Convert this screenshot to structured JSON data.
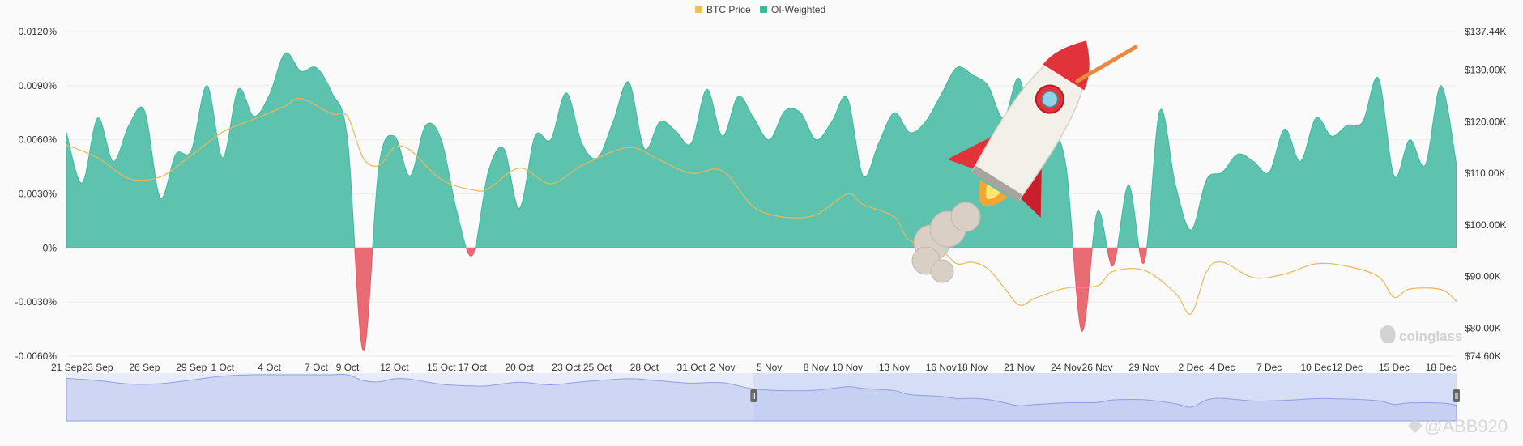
{
  "chart_data": {
    "type": "area",
    "legend": [
      {
        "name": "BTC Price",
        "color": "#e9c25a"
      },
      {
        "name": "OI-Weighted",
        "color": "#3cba9a"
      }
    ],
    "legend_position": "top-center",
    "x_dates": [
      "2025-09-21",
      "2025-09-23",
      "2025-09-26",
      "2025-09-29",
      "2025-10-01",
      "2025-10-04",
      "2025-10-07",
      "2025-10-09",
      "2025-10-12",
      "2025-10-15",
      "2025-10-17",
      "2025-10-20",
      "2025-10-23",
      "2025-10-25",
      "2025-10-28",
      "2025-10-31",
      "2025-11-02",
      "2025-11-05",
      "2025-11-08",
      "2025-11-10",
      "2025-11-13",
      "2025-11-16",
      "2025-11-18",
      "2025-11-21",
      "2025-11-24",
      "2025-11-26",
      "2025-11-29",
      "2025-12-02",
      "2025-12-04",
      "2025-12-07",
      "2025-12-10",
      "2025-12-12",
      "2025-12-15",
      "2025-12-18"
    ],
    "x_tick_labels": [
      "21 Sep",
      "23 Sep",
      "26 Sep",
      "29 Sep",
      "1 Oct",
      "4 Oct",
      "7 Oct",
      "9 Oct",
      "12 Oct",
      "15 Oct",
      "17 Oct",
      "20 Oct",
      "23 Oct",
      "25 Oct",
      "28 Oct",
      "31 Oct",
      "2 Nov",
      "5 Nov",
      "8 Nov",
      "10 Nov",
      "13 Nov",
      "16 Nov",
      "18 Nov",
      "21 Nov",
      "24 Nov",
      "26 Nov",
      "29 Nov",
      "2 Dec",
      "4 Dec",
      "7 Dec",
      "10 Dec",
      "12 Dec",
      "15 Dec",
      "18 Dec"
    ],
    "y_left": {
      "unit": "%",
      "range": [
        -0.006,
        0.012
      ],
      "ticks": [
        -0.006,
        -0.003,
        0,
        0.003,
        0.006,
        0.009,
        0.012
      ],
      "tick_labels": [
        "-0.0060%",
        "-0.0030%",
        "0%",
        "0.0030%",
        "0.0060%",
        "0.0090%",
        "0.0120%"
      ]
    },
    "y_right": {
      "unit": "USD",
      "range": [
        74600,
        137440
      ],
      "ticks": [
        74600,
        80000,
        90000,
        100000,
        110000,
        120000,
        130000,
        137440
      ],
      "tick_labels": [
        "$74.60K",
        "$80.00K",
        "$90.00K",
        "$100.00K",
        "$110.00K",
        "$120.00K",
        "$130.00K",
        "$137.44K"
      ]
    },
    "grid": true,
    "series": [
      {
        "name": "OI-Weighted",
        "axis": "left",
        "color": "#3cba9a",
        "negative_color": "#e35a63",
        "x": [
          "2025-09-21",
          "2025-09-22",
          "2025-09-23",
          "2025-09-24",
          "2025-09-25",
          "2025-09-26",
          "2025-09-27",
          "2025-09-28",
          "2025-09-29",
          "2025-09-30",
          "2025-10-01",
          "2025-10-02",
          "2025-10-03",
          "2025-10-04",
          "2025-10-05",
          "2025-10-06",
          "2025-10-07",
          "2025-10-08",
          "2025-10-09",
          "2025-10-10",
          "2025-10-11",
          "2025-10-12",
          "2025-10-13",
          "2025-10-14",
          "2025-10-15",
          "2025-10-16",
          "2025-10-17",
          "2025-10-18",
          "2025-10-19",
          "2025-10-20",
          "2025-10-21",
          "2025-10-22",
          "2025-10-23",
          "2025-10-24",
          "2025-10-25",
          "2025-10-26",
          "2025-10-27",
          "2025-10-28",
          "2025-10-29",
          "2025-10-30",
          "2025-10-31",
          "2025-11-01",
          "2025-11-02",
          "2025-11-03",
          "2025-11-04",
          "2025-11-05",
          "2025-11-06",
          "2025-11-07",
          "2025-11-08",
          "2025-11-09",
          "2025-11-10",
          "2025-11-11",
          "2025-11-12",
          "2025-11-13",
          "2025-11-14",
          "2025-11-15",
          "2025-11-16",
          "2025-11-17",
          "2025-11-18",
          "2025-11-19",
          "2025-11-20",
          "2025-11-21",
          "2025-11-22",
          "2025-11-23",
          "2025-11-24",
          "2025-11-25",
          "2025-11-26",
          "2025-11-27",
          "2025-11-28",
          "2025-11-29",
          "2025-11-30",
          "2025-12-01",
          "2025-12-02",
          "2025-12-03",
          "2025-12-04",
          "2025-12-05",
          "2025-12-06",
          "2025-12-07",
          "2025-12-08",
          "2025-12-09",
          "2025-12-10",
          "2025-12-11",
          "2025-12-12",
          "2025-12-13",
          "2025-12-14",
          "2025-12-15",
          "2025-12-16",
          "2025-12-17",
          "2025-12-18",
          "2025-12-19"
        ],
        "values": [
          0.0064,
          0.0036,
          0.0072,
          0.0048,
          0.0068,
          0.0076,
          0.0028,
          0.0052,
          0.0054,
          0.009,
          0.005,
          0.0088,
          0.0073,
          0.0085,
          0.0108,
          0.0098,
          0.01,
          0.0086,
          0.006,
          -0.0057,
          0.0045,
          0.0062,
          0.004,
          0.0068,
          0.006,
          0.002,
          -0.0004,
          0.0042,
          0.0055,
          0.0022,
          0.0062,
          0.006,
          0.0086,
          0.0058,
          0.005,
          0.007,
          0.0092,
          0.0055,
          0.007,
          0.0065,
          0.0058,
          0.0088,
          0.0062,
          0.0084,
          0.0072,
          0.006,
          0.0076,
          0.0075,
          0.006,
          0.007,
          0.0083,
          0.004,
          0.0058,
          0.0075,
          0.0064,
          0.007,
          0.0085,
          0.01,
          0.0096,
          0.009,
          0.0072,
          0.0094,
          0.0055,
          0.0065,
          0.0045,
          -0.0046,
          0.002,
          -0.001,
          0.0035,
          -0.0008,
          0.0076,
          0.0035,
          0.001,
          0.0038,
          0.0042,
          0.0052,
          0.0048,
          0.0042,
          0.0066,
          0.0048,
          0.0072,
          0.0062,
          0.0068,
          0.007,
          0.0094,
          0.004,
          0.006,
          0.0046,
          0.009,
          0.0046
        ]
      },
      {
        "name": "BTC Price",
        "axis": "right",
        "color": "#e9c25a",
        "x": [
          "2025-09-21",
          "2025-09-23",
          "2025-09-25",
          "2025-09-27",
          "2025-09-29",
          "2025-10-01",
          "2025-10-03",
          "2025-10-05",
          "2025-10-06",
          "2025-10-08",
          "2025-10-09",
          "2025-10-10",
          "2025-10-11",
          "2025-10-12",
          "2025-10-13",
          "2025-10-15",
          "2025-10-17",
          "2025-10-18",
          "2025-10-20",
          "2025-10-22",
          "2025-10-24",
          "2025-10-27",
          "2025-10-29",
          "2025-10-31",
          "2025-11-02",
          "2025-11-04",
          "2025-11-06",
          "2025-11-08",
          "2025-11-10",
          "2025-11-11",
          "2025-11-13",
          "2025-11-14",
          "2025-11-16",
          "2025-11-17",
          "2025-11-18",
          "2025-11-19",
          "2025-11-20",
          "2025-11-21",
          "2025-11-22",
          "2025-11-24",
          "2025-11-26",
          "2025-11-27",
          "2025-11-29",
          "2025-12-01",
          "2025-12-02",
          "2025-12-03",
          "2025-12-04",
          "2025-12-06",
          "2025-12-08",
          "2025-12-10",
          "2025-12-12",
          "2025-12-14",
          "2025-12-15",
          "2025-12-16",
          "2025-12-18",
          "2025-12-19"
        ],
        "values": [
          115500,
          113000,
          109000,
          109300,
          113500,
          118000,
          120500,
          123000,
          124500,
          121500,
          121000,
          113000,
          111500,
          115000,
          114500,
          108800,
          106800,
          107000,
          111000,
          108000,
          111500,
          115000,
          112500,
          110000,
          110500,
          103500,
          101500,
          102000,
          106000,
          104000,
          101500,
          97000,
          95000,
          92500,
          92800,
          91500,
          88000,
          84500,
          85800,
          87800,
          88200,
          91000,
          91200,
          86800,
          82800,
          91000,
          92800,
          89800,
          90500,
          92500,
          92000,
          90000,
          86000,
          87600,
          87500,
          85200
        ]
      }
    ],
    "navigator": {
      "selection_start": "2025-11-04",
      "selection_end": "2025-12-19"
    }
  },
  "watermark": {
    "brand": "coinglass",
    "author": "@ABB920"
  }
}
